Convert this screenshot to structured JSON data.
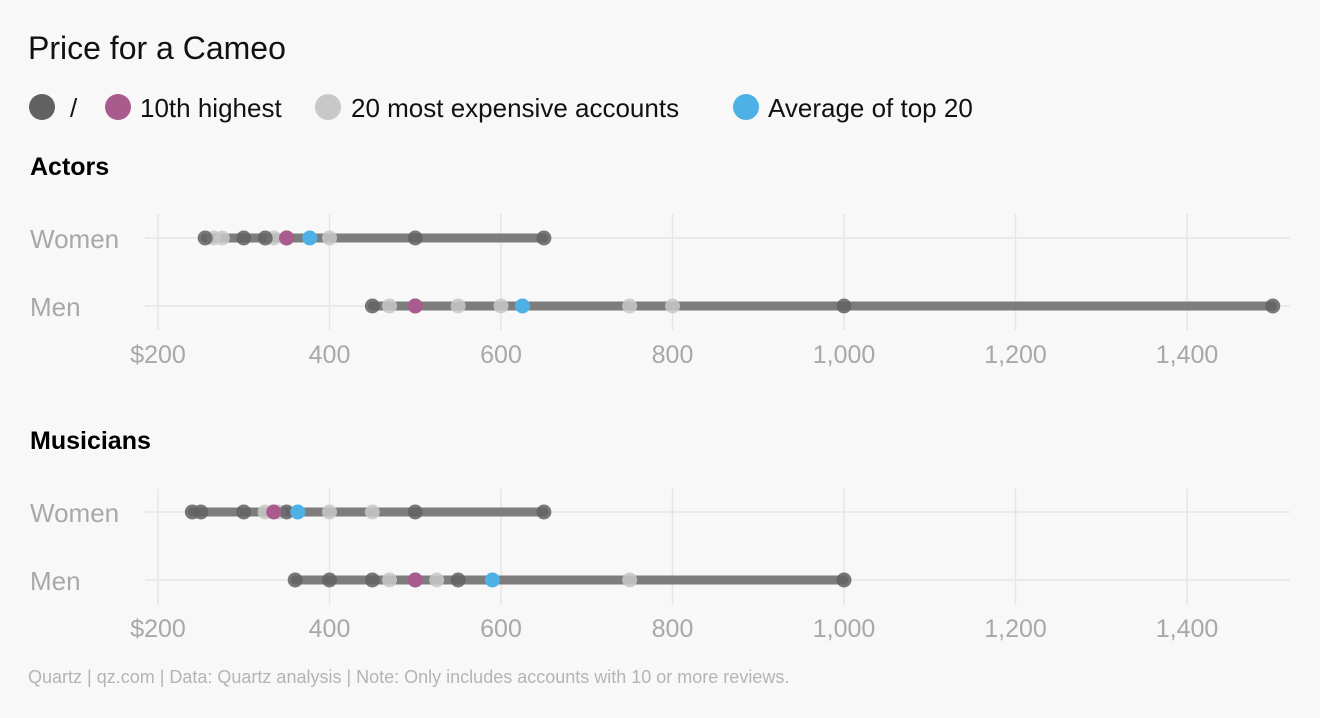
{
  "chart_data": {
    "type": "scatter",
    "title": "Price for a Cameo",
    "legend": {
      "placement": "top-left",
      "items": [
        {
          "label": "",
          "color": "#616161"
        },
        {
          "label": "/",
          "color": null
        },
        {
          "label": "10th highest",
          "color": "#a85b8c"
        },
        {
          "label": "20 most expensive accounts",
          "color": "#c8c8c8"
        },
        {
          "label": "Average of top 20",
          "color": "#4eb1e5"
        }
      ]
    },
    "colors": {
      "range_line": "#7d7d7d",
      "dark_points": "#616161",
      "light_points": "#c8c8c8",
      "tenth_highest": "#a85b8c",
      "average": "#4eb1e5"
    },
    "xlim": [
      180,
      1510
    ],
    "x_ticks": [
      200,
      400,
      600,
      800,
      1000,
      1200,
      1400
    ],
    "x_tick_labels": [
      "$200",
      "400",
      "600",
      "800",
      "1,000",
      "1,200",
      "1,400"
    ],
    "grid": true,
    "panels": [
      {
        "title": "Actors",
        "rows": [
          {
            "label": "Women",
            "min": 255,
            "max": 650,
            "dark": [
              255,
              300,
              325,
              350,
              500,
              650
            ],
            "light": [
              265,
              275,
              335,
              400
            ],
            "tenth": 350,
            "average": 377
          },
          {
            "label": "Men",
            "min": 450,
            "max": 1500,
            "dark": [
              450,
              500,
              1000,
              1500
            ],
            "light": [
              470,
              550,
              600,
              750,
              800
            ],
            "tenth": 500,
            "average": 625
          }
        ]
      },
      {
        "title": "Musicians",
        "rows": [
          {
            "label": "Women",
            "min": 240,
            "max": 650,
            "dark": [
              240,
              250,
              300,
              350,
              500,
              650
            ],
            "light": [
              325,
              340,
              400,
              450
            ],
            "tenth": 335,
            "average": 363
          },
          {
            "label": "Men",
            "min": 360,
            "max": 1000,
            "dark": [
              360,
              400,
              450,
              500,
              550,
              1000
            ],
            "light": [
              470,
              525,
              750
            ],
            "tenth": 500,
            "average": 590
          }
        ]
      }
    ],
    "source": "Quartz | qz.com | Data: Quartz analysis | Note: Only includes accounts with 10 or more reviews."
  }
}
